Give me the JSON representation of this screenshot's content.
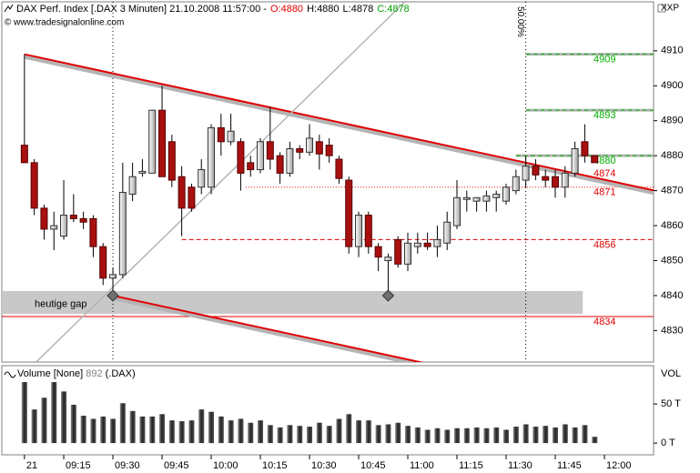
{
  "chart_data": {
    "type": "candlestick",
    "title": "DAX Perf. Index [.DAX  3 Minuten] 21.10.2008 11:57:00 -",
    "quote": [
      {
        "text": "O:4880",
        "color": "#e00000"
      },
      {
        "text": "H:4880",
        "color": "#000000"
      },
      {
        "text": "L:4878",
        "color": "#000000"
      },
      {
        "text": "C:4878",
        "color": "#00a000"
      }
    ],
    "source": "© www.tradesignalonline.com",
    "price_label": "XXP",
    "xlim": [
      -2.3,
      64
    ],
    "xticks": [
      {
        "value": 0,
        "label": "21"
      },
      {
        "value": 4,
        "label": "09:15"
      },
      {
        "value": 9,
        "label": "09:30"
      },
      {
        "value": 14,
        "label": "09:45"
      },
      {
        "value": 19,
        "label": "10:00"
      },
      {
        "value": 24,
        "label": "10:15"
      },
      {
        "value": 29,
        "label": "10:30"
      },
      {
        "value": 34,
        "label": "10:45"
      },
      {
        "value": 39,
        "label": "11:00"
      },
      {
        "value": 44,
        "label": "11:15"
      },
      {
        "value": 49,
        "label": "11:30"
      },
      {
        "value": 54,
        "label": "11:45"
      },
      {
        "value": 59,
        "label": "12:00"
      }
    ],
    "ylim": [
      4821,
      4924
    ],
    "yticks": [
      4830,
      4840,
      4850,
      4860,
      4870,
      4880,
      4890,
      4900,
      4910
    ],
    "up_color": "#dcdcdc",
    "down_color": "#a81010",
    "open": [
      4883,
      4878,
      4865,
      4859,
      4857,
      4863,
      4862,
      4862,
      4854,
      4845,
      4846,
      4869,
      4875,
      4875,
      4893,
      4884,
      4874,
      4871,
      4871,
      4871,
      4888,
      4884,
      4884,
      4878,
      4876,
      4884,
      4880,
      4875,
      4882,
      4881,
      4884,
      4883,
      4879,
      4873,
      4854,
      4863,
      4854,
      4850,
      4856,
      4849,
      4854,
      4855,
      4854,
      4855,
      4860,
      4867.5,
      4867,
      4867,
      4868,
      4867,
      4870,
      4873,
      4877,
      4874,
      4874,
      4871,
      4875,
      4884,
      4880
    ],
    "high": [
      4909,
      4879,
      4866,
      4864,
      4873,
      4869,
      4864,
      4863,
      4855,
      4848,
      4878,
      4878,
      4879,
      4893,
      4900,
      4886,
      4877,
      4872,
      4879,
      4889,
      4892,
      4892,
      4885,
      4880,
      4885,
      4894,
      4881,
      4884,
      4883,
      4889,
      4886,
      4885,
      4880,
      4874,
      4864,
      4864,
      4855,
      4852,
      4857,
      4858,
      4858,
      4858,
      4860,
      4864,
      4873,
      4870,
      4868,
      4870,
      4870,
      4872,
      4876,
      4880,
      4879,
      4876,
      4876,
      4877,
      4884,
      4889,
      4880
    ],
    "low": [
      4878,
      4863,
      4856,
      4853,
      4856,
      4861,
      4859,
      4851,
      4843,
      4841,
      4845,
      4867,
      4874,
      4875,
      4874,
      4871,
      4857,
      4864,
      4869,
      4869,
      4880,
      4883,
      4870,
      4874,
      4875,
      4876,
      4872,
      4874,
      4879,
      4880,
      4876,
      4878,
      4872,
      4852,
      4851,
      4852,
      4847,
      4840,
      4848,
      4847,
      4852,
      4853,
      4851,
      4853,
      4859,
      4864,
      4864,
      4864,
      4864,
      4866,
      4869,
      4871,
      4873,
      4871,
      4868,
      4868,
      4874,
      4878,
      4878
    ],
    "close": [
      4878,
      4865,
      4859,
      4860,
      4863,
      4862,
      4861,
      4854,
      4845,
      4846,
      4869.5,
      4874,
      4875.5,
      4893,
      4874,
      4873,
      4865,
      4865,
      4876,
      4888,
      4884,
      4887,
      4875,
      4876,
      4884,
      4879,
      4875,
      4882,
      4881,
      4885,
      4880.5,
      4880,
      4873.5,
      4854,
      4863,
      4854,
      4851,
      4851,
      4849,
      4855,
      4855,
      4854,
      4856,
      4861,
      4868,
      4868,
      4868,
      4868.5,
      4869,
      4871,
      4874,
      4877,
      4874.5,
      4873,
      4871,
      4875,
      4882,
      4880,
      4878
    ],
    "levels": [
      {
        "value": 4909,
        "color": "#00b000",
        "style": "dashed",
        "start": 51
      },
      {
        "value": 4893,
        "color": "#00b000",
        "style": "dashed",
        "start": 51
      },
      {
        "value": 4880,
        "color": "#00b000",
        "style": "dashed",
        "start": 50
      },
      {
        "value": 4874,
        "color": "#e00000",
        "style": "none",
        "start": 64
      },
      {
        "value": 4871,
        "color": "#e00000",
        "style": "dotted",
        "start": 22.5
      },
      {
        "value": 4856,
        "color": "#e00000",
        "style": "dashed",
        "start": 16
      },
      {
        "value": 4834,
        "color": "#e00000",
        "style": "solid",
        "start": -2.3
      }
    ],
    "trendlines": [
      {
        "from": [
          0,
          4909
        ],
        "to": [
          64,
          4870.1
        ],
        "color": "#e00000"
      },
      {
        "from": [
          9,
          4840
        ],
        "to": [
          41.5,
          4820.2
        ],
        "color": "#e00000"
      },
      {
        "from": [
          1.2,
          4821
        ],
        "to": [
          38.7,
          4924
        ],
        "color": "#b4b4b4"
      }
    ],
    "gap": {
      "label": "heutige gap",
      "from_x": -2.3,
      "to_x": 56.8,
      "range": [
        4834.8,
        4841.3
      ],
      "color": "#c8c8c8"
    },
    "markers": [
      {
        "x": 9,
        "y": 4840
      },
      {
        "x": 37,
        "y": 4840
      }
    ],
    "vlines": [
      9,
      51
    ],
    "vline_label": "50.00%",
    "volume": {
      "title": "Volume [None]",
      "value": 892,
      "symbol": "(.DAX)",
      "label": "VOL",
      "ylim": [
        -15,
        99
      ],
      "yticks": [
        {
          "value": 50,
          "label": "50 T"
        },
        {
          "value": 0,
          "label": "0 T"
        }
      ],
      "color": "#3c3c3c",
      "values": [
        78,
        43,
        58,
        78,
        66,
        49,
        35,
        31,
        34,
        31,
        51,
        41,
        34,
        34,
        37,
        29,
        28,
        29,
        43,
        40,
        34,
        29,
        31,
        26,
        29,
        23,
        20,
        23,
        22,
        21,
        26,
        22,
        31,
        37,
        29,
        29,
        23,
        24,
        26,
        22,
        20,
        17,
        19,
        17,
        19,
        19,
        20,
        19,
        20,
        17,
        21,
        24,
        21,
        22,
        20,
        24,
        20,
        23,
        8
      ]
    }
  }
}
